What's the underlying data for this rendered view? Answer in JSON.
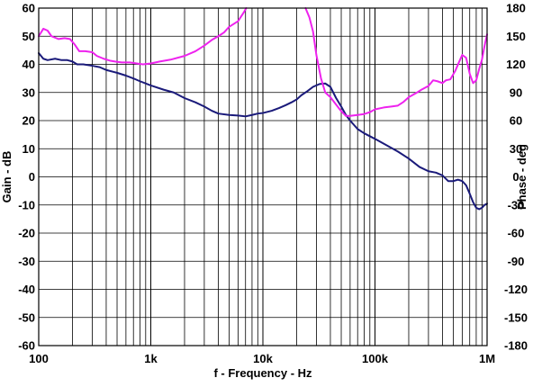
{
  "chart_data": {
    "type": "line",
    "xlabel": "f - Frequency - Hz",
    "ylabel_left": "Gain - dB",
    "ylabel_right": "Phase - deg",
    "x_scale": "log",
    "xlim": [
      100,
      1000000
    ],
    "ylim_left": [
      -60,
      60
    ],
    "ylim_right": [
      -180,
      180
    ],
    "x_ticks": [
      {
        "value": 100,
        "label": "100"
      },
      {
        "value": 1000,
        "label": "1k"
      },
      {
        "value": 10000,
        "label": "10k"
      },
      {
        "value": 100000,
        "label": "100k"
      },
      {
        "value": 1000000,
        "label": "1M"
      }
    ],
    "y_ticks_left": [
      60,
      50,
      40,
      30,
      20,
      10,
      0,
      -10,
      -20,
      -30,
      -40,
      -50,
      -60
    ],
    "y_ticks_right": [
      180,
      150,
      120,
      90,
      60,
      30,
      0,
      -30,
      -60,
      -90,
      -120,
      -150,
      -180
    ],
    "grid": true,
    "series": [
      {
        "axis": "left",
        "color": "#1a1a7a",
        "points": [
          [
            100,
            44
          ],
          [
            110,
            42
          ],
          [
            120,
            41.5
          ],
          [
            140,
            42
          ],
          [
            160,
            41.5
          ],
          [
            180,
            41.5
          ],
          [
            200,
            41
          ],
          [
            220,
            40
          ],
          [
            250,
            40
          ],
          [
            300,
            39.5
          ],
          [
            350,
            39
          ],
          [
            400,
            38
          ],
          [
            500,
            37
          ],
          [
            600,
            36
          ],
          [
            700,
            35
          ],
          [
            800,
            34
          ],
          [
            1000,
            32.5
          ],
          [
            1300,
            31
          ],
          [
            1600,
            30
          ],
          [
            2000,
            28
          ],
          [
            2500,
            26.5
          ],
          [
            3000,
            25
          ],
          [
            3500,
            23.5
          ],
          [
            4000,
            22.5
          ],
          [
            5000,
            22
          ],
          [
            6000,
            21.8
          ],
          [
            7000,
            21.5
          ],
          [
            8000,
            22
          ],
          [
            9000,
            22.5
          ],
          [
            10000,
            22.7
          ],
          [
            12000,
            23.5
          ],
          [
            14000,
            24.5
          ],
          [
            16000,
            25.5
          ],
          [
            18000,
            26.5
          ],
          [
            20000,
            27.5
          ],
          [
            22000,
            29
          ],
          [
            25000,
            30.5
          ],
          [
            28000,
            32
          ],
          [
            32000,
            33
          ],
          [
            36000,
            33.2
          ],
          [
            40000,
            32
          ],
          [
            45000,
            28
          ],
          [
            50000,
            25
          ],
          [
            55000,
            22
          ],
          [
            60000,
            20
          ],
          [
            70000,
            17
          ],
          [
            80000,
            15.5
          ],
          [
            100000,
            13.5
          ],
          [
            130000,
            11
          ],
          [
            160000,
            9
          ],
          [
            200000,
            6.5
          ],
          [
            250000,
            3.5
          ],
          [
            300000,
            2
          ],
          [
            350000,
            1.5
          ],
          [
            400000,
            0.5
          ],
          [
            450000,
            -1.5
          ],
          [
            500000,
            -1.5
          ],
          [
            550000,
            -1
          ],
          [
            600000,
            -1.5
          ],
          [
            650000,
            -3
          ],
          [
            700000,
            -6
          ],
          [
            750000,
            -9
          ],
          [
            800000,
            -11
          ],
          [
            850000,
            -11.5
          ],
          [
            900000,
            -11
          ],
          [
            950000,
            -10
          ],
          [
            1000000,
            -9.5
          ]
        ]
      },
      {
        "axis": "right",
        "color": "#ee22ee",
        "points": [
          [
            100,
            150
          ],
          [
            110,
            158
          ],
          [
            120,
            156
          ],
          [
            130,
            150
          ],
          [
            150,
            147
          ],
          [
            170,
            148
          ],
          [
            190,
            147
          ],
          [
            210,
            141
          ],
          [
            230,
            134
          ],
          [
            260,
            134
          ],
          [
            300,
            133
          ],
          [
            330,
            129
          ],
          [
            380,
            126
          ],
          [
            430,
            124
          ],
          [
            480,
            123
          ],
          [
            550,
            122
          ],
          [
            650,
            122
          ],
          [
            750,
            121
          ],
          [
            850,
            120
          ],
          [
            1000,
            121
          ],
          [
            1200,
            123
          ],
          [
            1500,
            125
          ],
          [
            2000,
            129
          ],
          [
            2500,
            134
          ],
          [
            3000,
            140
          ],
          [
            3500,
            146
          ],
          [
            4000,
            150
          ],
          [
            4500,
            154
          ],
          [
            5000,
            160
          ],
          [
            6000,
            166
          ],
          [
            6800,
            176
          ],
          [
            7100,
            180
          ]
        ]
      },
      {
        "axis": "right",
        "color": "#ee22ee",
        "points": [
          [
            24000,
            180
          ],
          [
            26000,
            170
          ],
          [
            28000,
            155
          ],
          [
            30000,
            130
          ],
          [
            33000,
            105
          ],
          [
            36000,
            90
          ],
          [
            40000,
            85
          ],
          [
            45000,
            77
          ],
          [
            50000,
            70
          ],
          [
            55000,
            65
          ],
          [
            60000,
            65
          ],
          [
            70000,
            66
          ],
          [
            80000,
            67
          ],
          [
            90000,
            69
          ],
          [
            100000,
            72
          ],
          [
            120000,
            74
          ],
          [
            140000,
            75
          ],
          [
            160000,
            76
          ],
          [
            180000,
            80
          ],
          [
            200000,
            85
          ],
          [
            230000,
            89
          ],
          [
            260000,
            93
          ],
          [
            300000,
            97
          ],
          [
            330000,
            103
          ],
          [
            360000,
            102
          ],
          [
            400000,
            100
          ],
          [
            430000,
            103
          ],
          [
            470000,
            104
          ],
          [
            520000,
            113
          ],
          [
            560000,
            122
          ],
          [
            600000,
            130
          ],
          [
            650000,
            127
          ],
          [
            700000,
            110
          ],
          [
            750000,
            100
          ],
          [
            800000,
            103
          ],
          [
            850000,
            115
          ],
          [
            900000,
            125
          ],
          [
            950000,
            140
          ],
          [
            1000000,
            152
          ]
        ]
      }
    ]
  }
}
